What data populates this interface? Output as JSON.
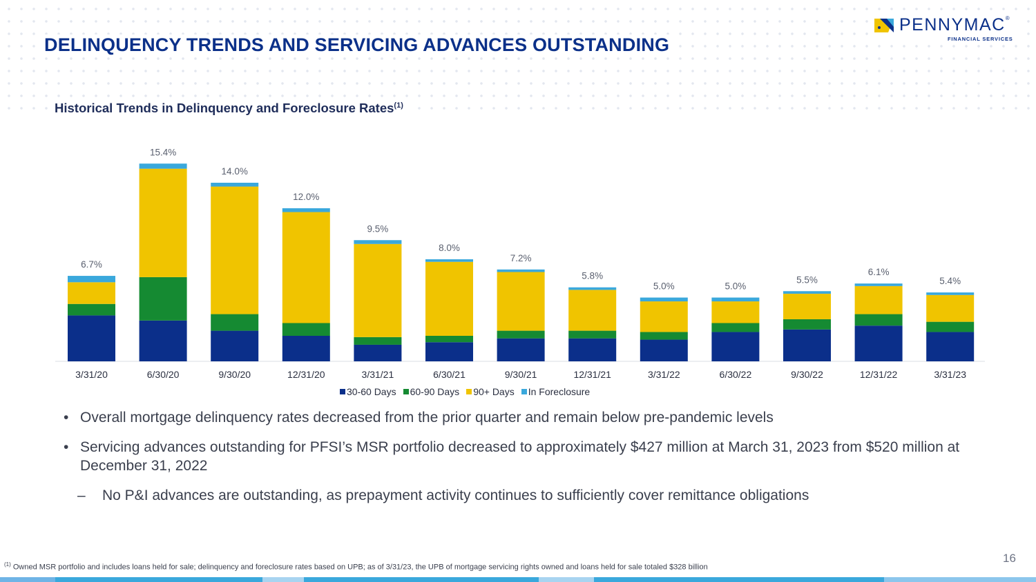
{
  "title": "DELINQUENCY TRENDS AND SERVICING ADVANCES OUTSTANDING",
  "logo": {
    "name": "PENNYMAC",
    "registered": "®",
    "subtitle": "FINANCIAL SERVICES"
  },
  "subtitle": "Historical Trends in Delinquency and Foreclosure Rates",
  "subtitle_note": "(1)",
  "colors": {
    "d30_60": "#0b2f8a",
    "d60_90": "#158a32",
    "d90_plus": "#f0c400",
    "foreclosure": "#3aa8dc",
    "title": "#0b3089"
  },
  "chart_data": {
    "type": "bar",
    "stacked": true,
    "title": "Historical Trends in Delinquency and Foreclosure Rates",
    "categories": [
      "3/31/20",
      "6/30/20",
      "9/30/20",
      "12/31/20",
      "3/31/21",
      "6/30/21",
      "9/30/21",
      "12/31/21",
      "3/31/22",
      "6/30/22",
      "9/30/22",
      "12/31/22",
      "3/31/23"
    ],
    "series": [
      {
        "name": "30-60 Days",
        "values": [
          3.6,
          3.2,
          2.4,
          2.0,
          1.3,
          1.5,
          1.8,
          1.8,
          1.7,
          2.3,
          2.5,
          2.8,
          2.3
        ]
      },
      {
        "name": "60-90 Days",
        "values": [
          0.9,
          3.4,
          1.3,
          1.0,
          0.6,
          0.5,
          0.6,
          0.6,
          0.6,
          0.7,
          0.8,
          0.9,
          0.8
        ]
      },
      {
        "name": "90+ Days",
        "values": [
          1.7,
          8.5,
          10.0,
          8.7,
          7.3,
          5.8,
          4.6,
          3.2,
          2.4,
          1.7,
          2.0,
          2.2,
          2.1
        ]
      },
      {
        "name": "In Foreclosure",
        "values": [
          0.5,
          0.4,
          0.3,
          0.3,
          0.3,
          0.2,
          0.2,
          0.2,
          0.3,
          0.3,
          0.2,
          0.2,
          0.2
        ]
      }
    ],
    "totals": [
      "6.7%",
      "15.4%",
      "14.0%",
      "12.0%",
      "9.5%",
      "8.0%",
      "7.2%",
      "5.8%",
      "5.0%",
      "5.0%",
      "5.5%",
      "6.1%",
      "5.4%"
    ],
    "ylim": [
      0,
      16
    ],
    "legend_position": "bottom",
    "xlabel": "",
    "ylabel": ""
  },
  "bullets": [
    "Overall mortgage delinquency rates decreased from the prior quarter and remain below pre-pandemic levels",
    "Servicing advances outstanding for PFSI’s MSR portfolio decreased to approximately $427 million at March 31, 2023 from $520 million at December 31, 2022"
  ],
  "sub_bullet_dash": "–",
  "sub_bullet": "No P&I advances are outstanding, as prepayment activity continues to sufficiently cover remittance obligations",
  "footnote_mark": "(1)",
  "footnote": "Owned MSR portfolio and includes loans held for sale; delinquency and foreclosure rates based on UPB; as of 3/31/23, the UPB of mortgage servicing rights owned and loans held for sale totaled $328 billion",
  "page_number": "16"
}
